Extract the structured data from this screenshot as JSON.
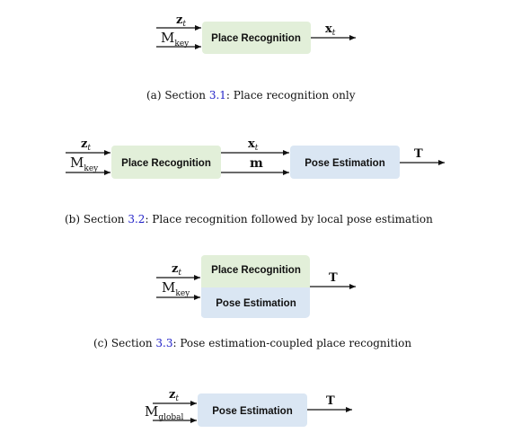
{
  "colors": {
    "recognition_box": "#e2efd9",
    "estimation_box": "#dae6f3",
    "link": "#2323c8"
  },
  "common": {
    "z_sym": "z",
    "z_sub": "t",
    "M_sym": "M",
    "key_sub": "key",
    "global_sub": "global",
    "x_sym": "x",
    "x_sub": "t",
    "m_sym": "m",
    "T_sym": "T"
  },
  "panels": {
    "a": {
      "box1": "Place Recognition",
      "caption_prefix": "(a) Section ",
      "caption_ref": "3.1",
      "caption_suffix": ": Place recognition only"
    },
    "b": {
      "box1": "Place Recognition",
      "box2": "Pose Estimation",
      "caption_prefix": "(b) Section ",
      "caption_ref": "3.2",
      "caption_suffix": ": Place recognition followed by local pose estimation"
    },
    "c": {
      "box_top": "Place Recognition",
      "box_bottom": "Pose Estimation",
      "caption_prefix": "(c) Section ",
      "caption_ref": "3.3",
      "caption_suffix": ": Pose estimation-coupled place recognition"
    },
    "d": {
      "box1": "Pose Estimation"
    }
  }
}
